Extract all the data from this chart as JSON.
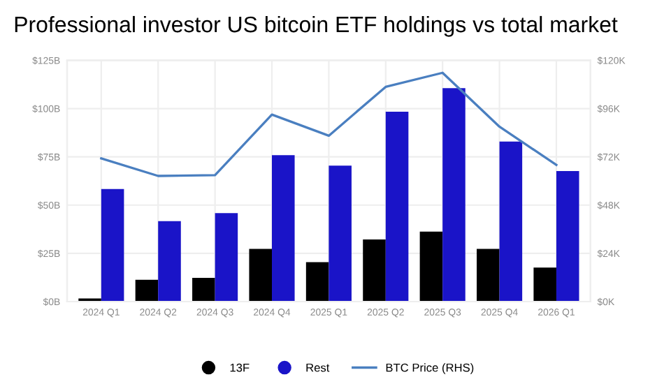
{
  "chart_data": {
    "type": "bar",
    "title": "Professional investor US bitcoin ETF holdings vs total market",
    "categories": [
      "2024 Q1",
      "2024 Q2",
      "2024 Q3",
      "2024 Q4",
      "2025 Q1",
      "2025 Q2",
      "2025 Q3",
      "2025 Q4",
      "2026 Q1"
    ],
    "series": [
      {
        "name": "13F",
        "color": "#000000",
        "values": [
          1.6,
          11.3,
          12.3,
          27.3,
          20.4,
          32.2,
          36.3,
          27.3,
          17.6
        ]
      },
      {
        "name": "Rest",
        "color": "#1a14c8",
        "values": [
          58.3,
          41.7,
          45.8,
          75.9,
          70.4,
          98.4,
          110.6,
          82.9,
          67.6
        ]
      },
      {
        "name": "BTC Price (RHS)",
        "type": "line",
        "axis": "y2",
        "color": "#4a7fc0",
        "values": [
          71.2,
          62.5,
          62.9,
          93.0,
          82.5,
          106.8,
          113.8,
          87.0,
          68.0
        ]
      }
    ],
    "ylim": [
      0,
      125
    ],
    "yticks": [
      {
        "value": 0,
        "label": "$0B"
      },
      {
        "value": 25,
        "label": "$25B"
      },
      {
        "value": 50,
        "label": "$50B"
      },
      {
        "value": 75,
        "label": "$75B"
      },
      {
        "value": 100,
        "label": "$100B"
      },
      {
        "value": 125,
        "label": "$125B"
      }
    ],
    "y2lim": [
      0,
      120
    ],
    "y2ticks": [
      {
        "value": 0,
        "label": "$0K"
      },
      {
        "value": 24,
        "label": "$24K"
      },
      {
        "value": 48,
        "label": "$48K"
      },
      {
        "value": 72,
        "label": "$72K"
      },
      {
        "value": 96,
        "label": "$96K"
      },
      {
        "value": 120,
        "label": "$120K"
      }
    ],
    "grid": true,
    "legend": "bottom"
  }
}
